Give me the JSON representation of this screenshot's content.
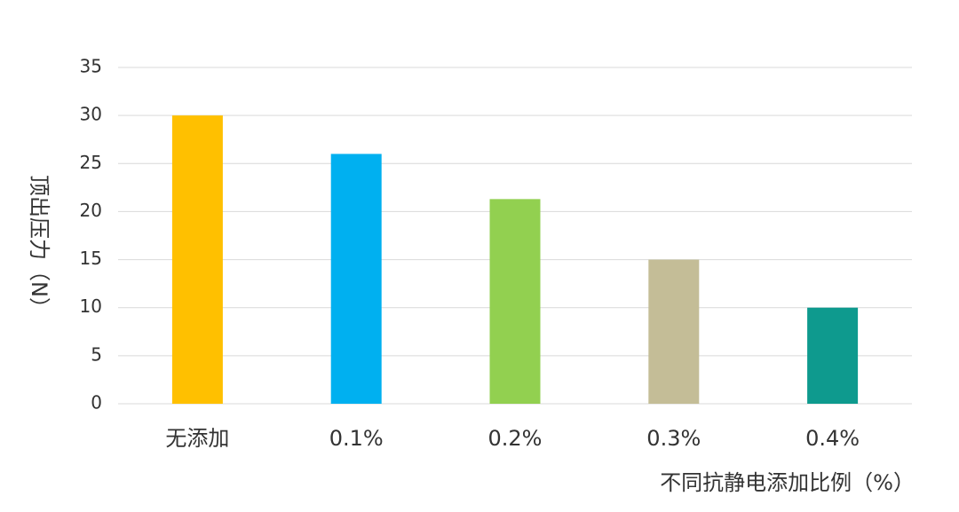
{
  "chart_data": {
    "type": "bar",
    "title": "",
    "categories": [
      "无添加",
      "0.1%",
      "0.2%",
      "0.3%",
      "0.4%"
    ],
    "values": [
      30,
      26,
      21.3,
      15,
      10
    ],
    "colors": [
      "#FFC000",
      "#00B0F0",
      "#92D050",
      "#C4BD97",
      "#0E9A8E"
    ],
    "xlabel": "不同抗静电添加比例（%）",
    "ylabel": "顶出压力（N）",
    "ylim": [
      0,
      35
    ],
    "yticks": [
      0,
      5,
      10,
      15,
      20,
      25,
      30,
      35
    ],
    "grid": true,
    "legend": "none"
  }
}
